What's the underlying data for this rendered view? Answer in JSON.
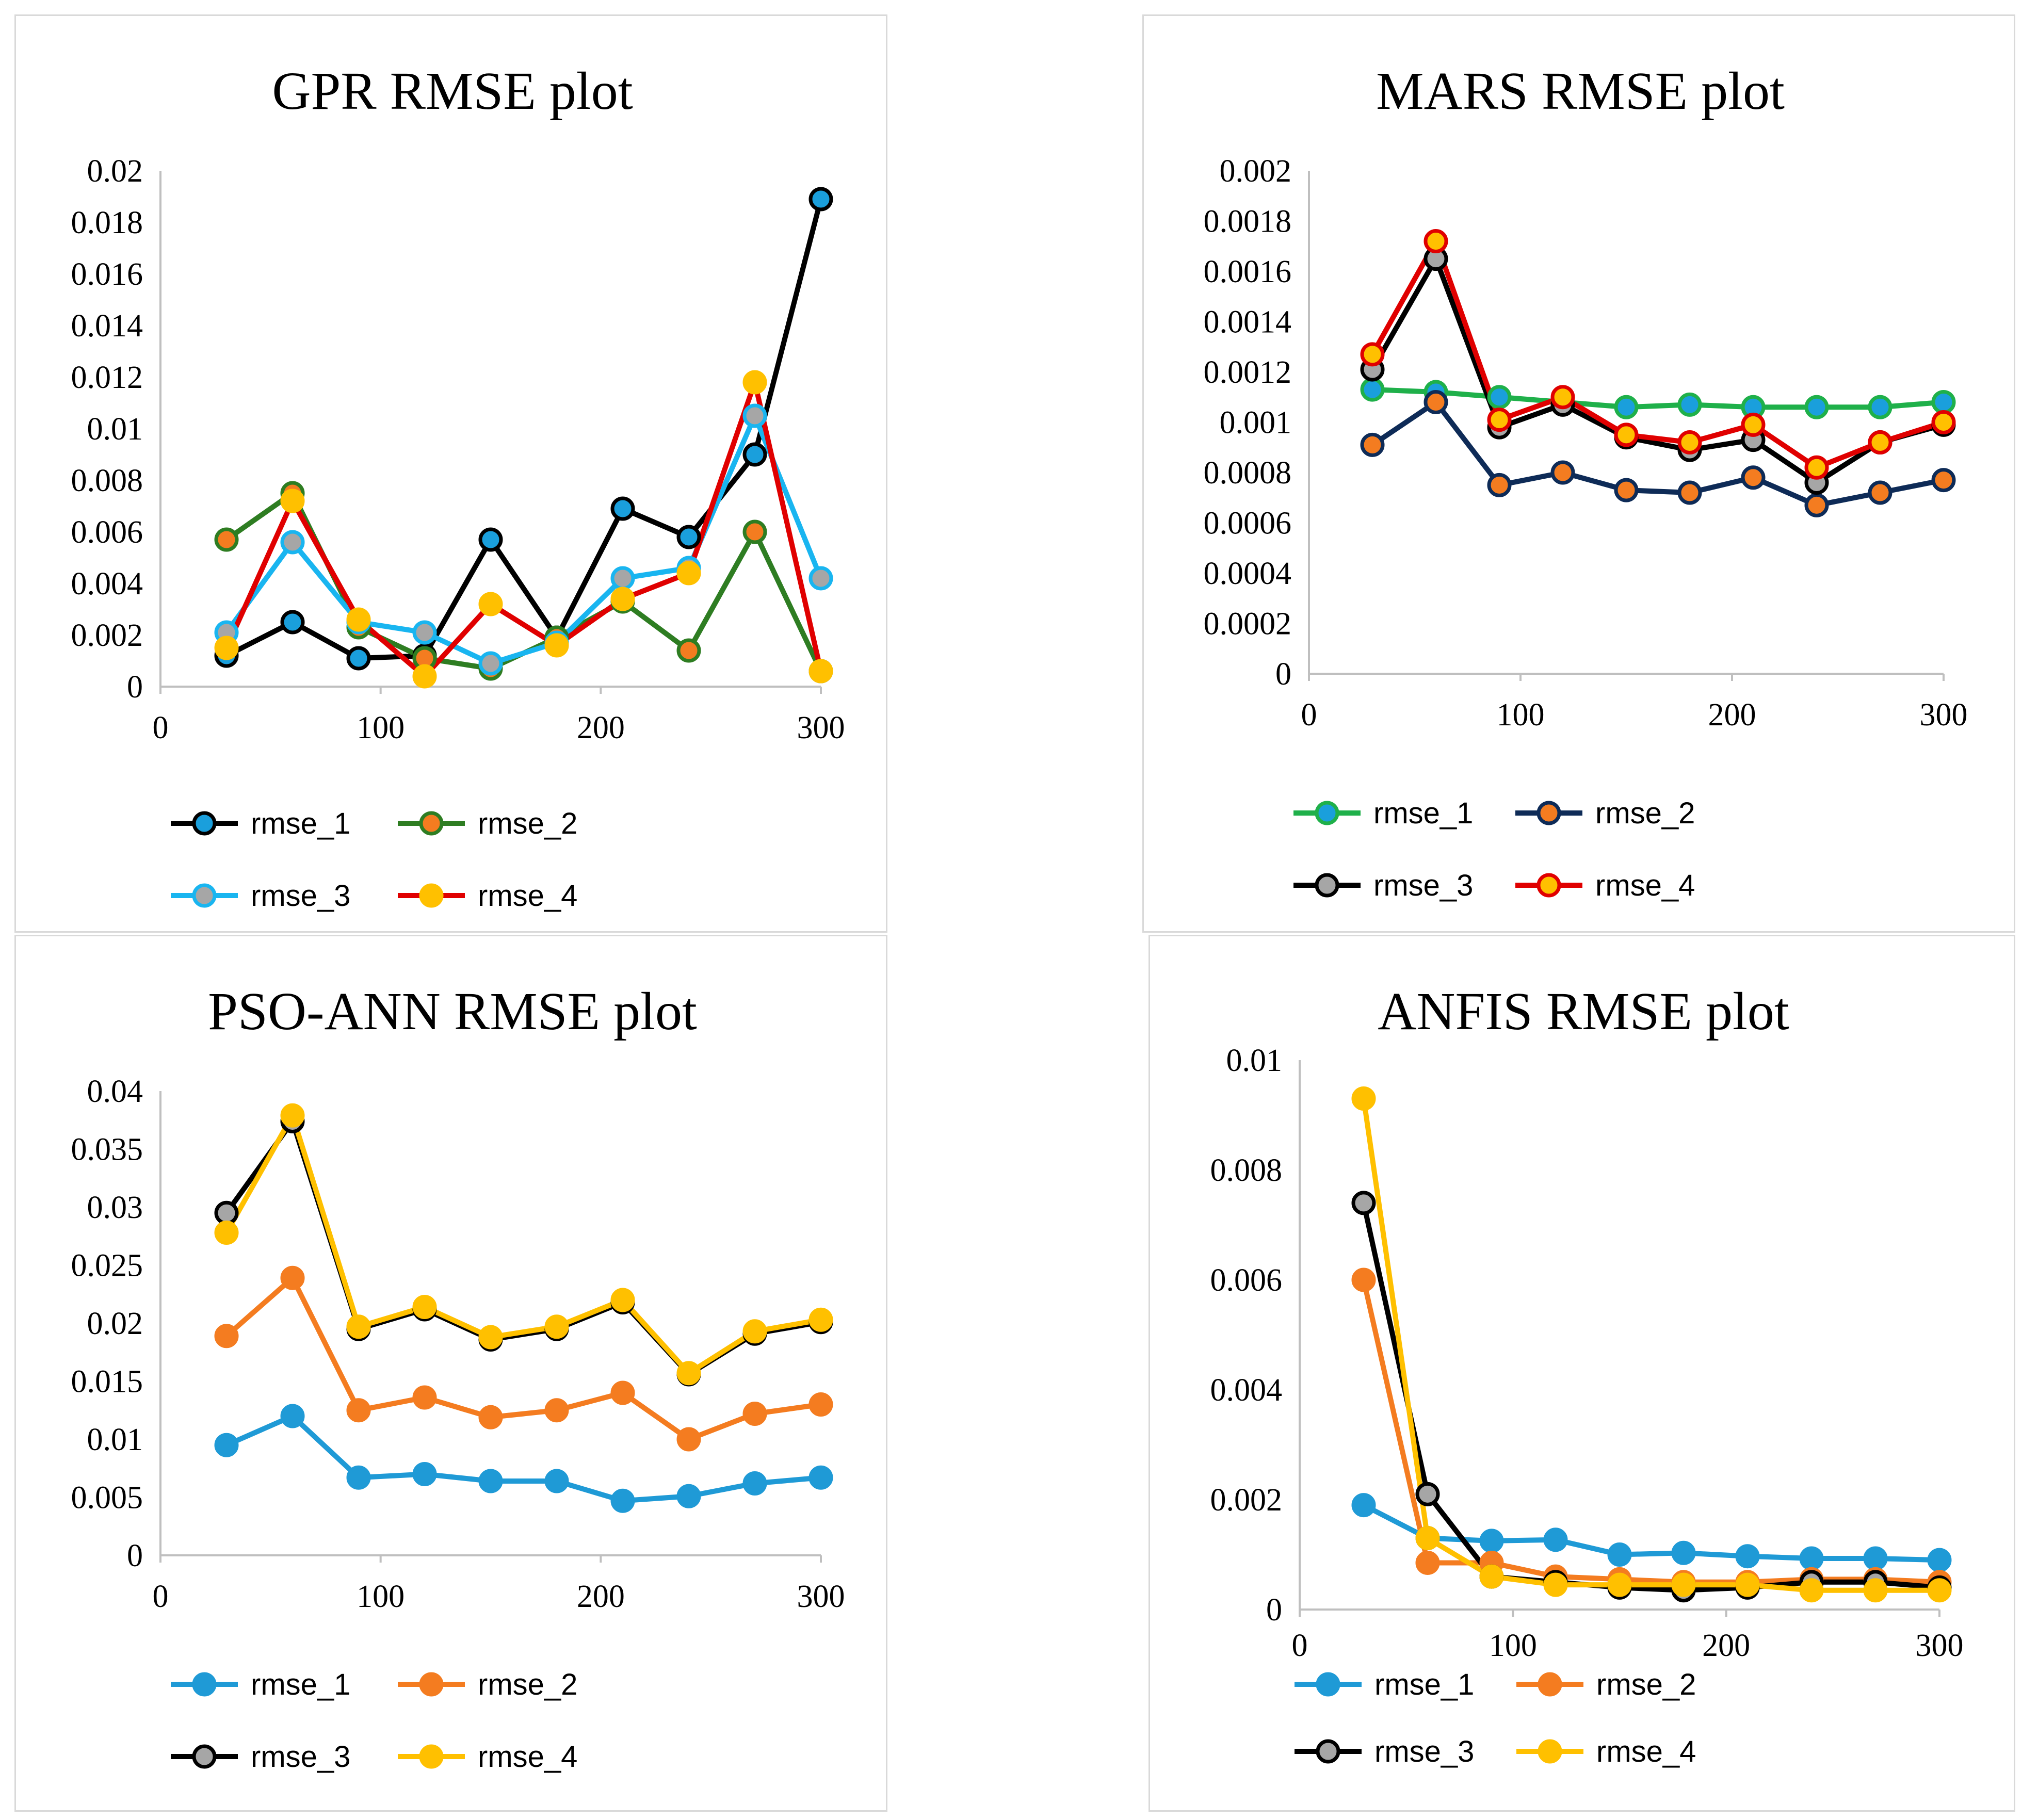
{
  "chart_data": [
    {
      "type": "line",
      "title": "GPR RMSE plot",
      "xlabel": "",
      "ylabel": "",
      "xlim": [
        0,
        300
      ],
      "ylim": [
        0,
        0.02
      ],
      "x_ticks": [
        "0",
        "100",
        "200",
        "300"
      ],
      "y_ticks": [
        "0",
        "0.002",
        "0.004",
        "0.006",
        "0.008",
        "0.01",
        "0.012",
        "0.014",
        "0.016",
        "0.018",
        "0.02"
      ],
      "x": [
        30,
        60,
        90,
        120,
        150,
        180,
        210,
        240,
        270,
        300
      ],
      "series": [
        {
          "name": "rmse_1",
          "line_color": "#000000",
          "marker_fill": "#1a9fdc",
          "marker_edge": "#000000",
          "values": [
            0.0012,
            0.0025,
            0.0011,
            0.0012,
            0.0057,
            0.0019,
            0.0069,
            0.0058,
            0.009,
            0.0189
          ]
        },
        {
          "name": "rmse_2",
          "line_color": "#2e7d22",
          "marker_fill": "#f47c20",
          "marker_edge": "#2e7d22",
          "values": [
            0.0057,
            0.0075,
            0.0023,
            0.0011,
            0.0007,
            0.0019,
            0.0033,
            0.0014,
            0.006,
            0.0006
          ]
        },
        {
          "name": "rmse_3",
          "line_color": "#19b5f0",
          "marker_fill": "#a6a6a6",
          "marker_edge": "#19b5f0",
          "values": [
            0.0021,
            0.0056,
            0.0025,
            0.0021,
            0.0009,
            0.0017,
            0.0042,
            0.0046,
            0.0105,
            0.0042
          ]
        },
        {
          "name": "rmse_4",
          "line_color": "#e00000",
          "marker_fill": "#ffc000",
          "marker_edge": "#ffc000",
          "values": [
            0.0015,
            0.0072,
            0.0026,
            0.0004,
            0.0032,
            0.0016,
            0.0034,
            0.0044,
            0.0118,
            0.0006
          ]
        }
      ],
      "legend_position": "bottom"
    },
    {
      "type": "line",
      "title": "MARS RMSE plot",
      "xlabel": "",
      "ylabel": "",
      "xlim": [
        0,
        300
      ],
      "ylim": [
        0,
        0.002
      ],
      "x_ticks": [
        "0",
        "100",
        "200",
        "300"
      ],
      "y_ticks": [
        "0",
        "0.0002",
        "0.0004",
        "0.0006",
        "0.0008",
        "0.001",
        "0.0012",
        "0.0014",
        "0.0016",
        "0.0018",
        "0.002"
      ],
      "x": [
        30,
        60,
        90,
        120,
        150,
        180,
        210,
        240,
        270,
        300
      ],
      "series": [
        {
          "name": "rmse_1",
          "line_color": "#1fb04a",
          "marker_fill": "#1a9fdc",
          "marker_edge": "#1fb04a",
          "values": [
            0.00113,
            0.00112,
            0.0011,
            0.00108,
            0.00106,
            0.00107,
            0.00106,
            0.00106,
            0.00106,
            0.00108
          ]
        },
        {
          "name": "rmse_2",
          "line_color": "#0e2b57",
          "marker_fill": "#f47c20",
          "marker_edge": "#0e2b57",
          "values": [
            0.00091,
            0.00108,
            0.00075,
            0.0008,
            0.00073,
            0.00072,
            0.00078,
            0.00067,
            0.00072,
            0.00077
          ]
        },
        {
          "name": "rmse_3",
          "line_color": "#000000",
          "marker_fill": "#a6a6a6",
          "marker_edge": "#000000",
          "values": [
            0.00121,
            0.00165,
            0.00098,
            0.00107,
            0.00094,
            0.00089,
            0.00093,
            0.00076,
            0.00092,
            0.00099
          ]
        },
        {
          "name": "rmse_4",
          "line_color": "#e00000",
          "marker_fill": "#ffc000",
          "marker_edge": "#e00000",
          "values": [
            0.00127,
            0.00172,
            0.00101,
            0.0011,
            0.00095,
            0.00092,
            0.00099,
            0.00082,
            0.00092,
            0.001
          ]
        }
      ],
      "legend_position": "bottom"
    },
    {
      "type": "line",
      "title": "PSO-ANN RMSE plot",
      "xlabel": "",
      "ylabel": "",
      "xlim": [
        0,
        300
      ],
      "ylim": [
        0,
        0.04
      ],
      "x_ticks": [
        "0",
        "100",
        "200",
        "300"
      ],
      "y_ticks": [
        "0",
        "0.005",
        "0.01",
        "0.015",
        "0.02",
        "0.025",
        "0.03",
        "0.035",
        "0.04"
      ],
      "x": [
        30,
        60,
        90,
        120,
        150,
        180,
        210,
        240,
        270,
        300
      ],
      "series": [
        {
          "name": "rmse_1",
          "line_color": "#1f9ad6",
          "marker_fill": "#1f9ad6",
          "marker_edge": "#1f9ad6",
          "values": [
            0.0095,
            0.012,
            0.0067,
            0.007,
            0.0064,
            0.0064,
            0.0047,
            0.0051,
            0.0062,
            0.0067
          ]
        },
        {
          "name": "rmse_2",
          "line_color": "#f47c20",
          "marker_fill": "#f47c20",
          "marker_edge": "#f47c20",
          "values": [
            0.0189,
            0.0239,
            0.0125,
            0.0136,
            0.0119,
            0.0125,
            0.014,
            0.01,
            0.0122,
            0.013
          ]
        },
        {
          "name": "rmse_3",
          "line_color": "#000000",
          "marker_fill": "#a6a6a6",
          "marker_edge": "#000000",
          "values": [
            0.0295,
            0.0374,
            0.0195,
            0.0212,
            0.0186,
            0.0195,
            0.0218,
            0.0156,
            0.0191,
            0.0201
          ]
        },
        {
          "name": "rmse_4",
          "line_color": "#ffc000",
          "marker_fill": "#ffc000",
          "marker_edge": "#ffc000",
          "values": [
            0.0278,
            0.0379,
            0.0197,
            0.0214,
            0.0188,
            0.0197,
            0.022,
            0.0157,
            0.0193,
            0.0203
          ]
        }
      ],
      "legend_position": "bottom"
    },
    {
      "type": "line",
      "title": "ANFIS  RMSE plot",
      "xlabel": "",
      "ylabel": "",
      "xlim": [
        0,
        300
      ],
      "ylim": [
        0,
        0.01
      ],
      "x_ticks": [
        "0",
        "100",
        "200",
        "300"
      ],
      "y_ticks": [
        "0",
        "0.002",
        "0.004",
        "0.006",
        "0.008",
        "0.01"
      ],
      "x": [
        30,
        60,
        90,
        120,
        150,
        180,
        210,
        240,
        270,
        300
      ],
      "series": [
        {
          "name": "rmse_1",
          "line_color": "#1f9ad6",
          "marker_fill": "#1f9ad6",
          "marker_edge": "#1f9ad6",
          "values": [
            0.0019,
            0.0013,
            0.00125,
            0.00127,
            0.001,
            0.00103,
            0.00097,
            0.00093,
            0.00093,
            0.0009
          ]
        },
        {
          "name": "rmse_2",
          "line_color": "#f47c20",
          "marker_fill": "#f47c20",
          "marker_edge": "#f47c20",
          "values": [
            0.006,
            0.00085,
            0.00085,
            0.0006,
            0.00055,
            0.0005,
            0.0005,
            0.00055,
            0.00055,
            0.0005
          ]
        },
        {
          "name": "rmse_3",
          "line_color": "#000000",
          "marker_fill": "#a6a6a6",
          "marker_edge": "#000000",
          "values": [
            0.0074,
            0.0021,
            0.0006,
            0.0005,
            0.0004,
            0.00035,
            0.0004,
            0.0005,
            0.0005,
            0.0004
          ]
        },
        {
          "name": "rmse_4",
          "line_color": "#ffc000",
          "marker_fill": "#ffc000",
          "marker_edge": "#ffc000",
          "values": [
            0.0093,
            0.0013,
            0.0006,
            0.00045,
            0.00045,
            0.00045,
            0.00045,
            0.00035,
            0.00035,
            0.00035
          ]
        }
      ],
      "legend_position": "bottom"
    }
  ]
}
